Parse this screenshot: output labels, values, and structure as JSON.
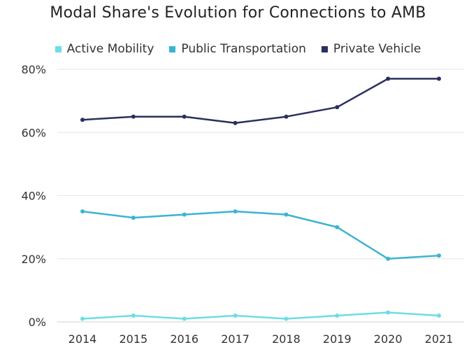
{
  "chart_data": {
    "type": "line",
    "title": "Modal Share's Evolution for Connections to AMB",
    "xlabel": "",
    "ylabel": "",
    "categories": [
      "2014",
      "2015",
      "2016",
      "2017",
      "2018",
      "2019",
      "2020",
      "2021"
    ],
    "ylim": [
      0,
      80
    ],
    "yticks": [
      "0%",
      "20%",
      "40%",
      "60%",
      "80%"
    ],
    "ytick_values": [
      0,
      20,
      40,
      60,
      80
    ],
    "grid": true,
    "legend_position": "top",
    "series": [
      {
        "name": "Active Mobility",
        "color": "#6ddde6",
        "values": [
          1,
          2,
          1,
          2,
          1,
          2,
          3,
          2
        ]
      },
      {
        "name": "Public Transportation",
        "color": "#3bb4d0",
        "values": [
          35,
          33,
          34,
          35,
          34,
          30,
          20,
          21
        ]
      },
      {
        "name": "Private Vehicle",
        "color": "#2b2f5f",
        "values": [
          64,
          65,
          65,
          63,
          65,
          68,
          77,
          77
        ]
      }
    ]
  }
}
